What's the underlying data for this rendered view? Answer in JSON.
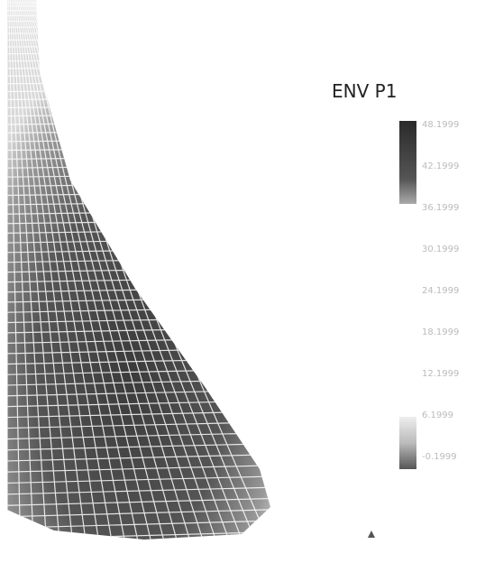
{
  "legend": {
    "title": "ENV P1",
    "labels": [
      "48.1999",
      "42.1999",
      "36.1999",
      "30.1999",
      "24.1999",
      "18.1999",
      "12.1999",
      "6.1999",
      "-0.1999"
    ]
  }
}
